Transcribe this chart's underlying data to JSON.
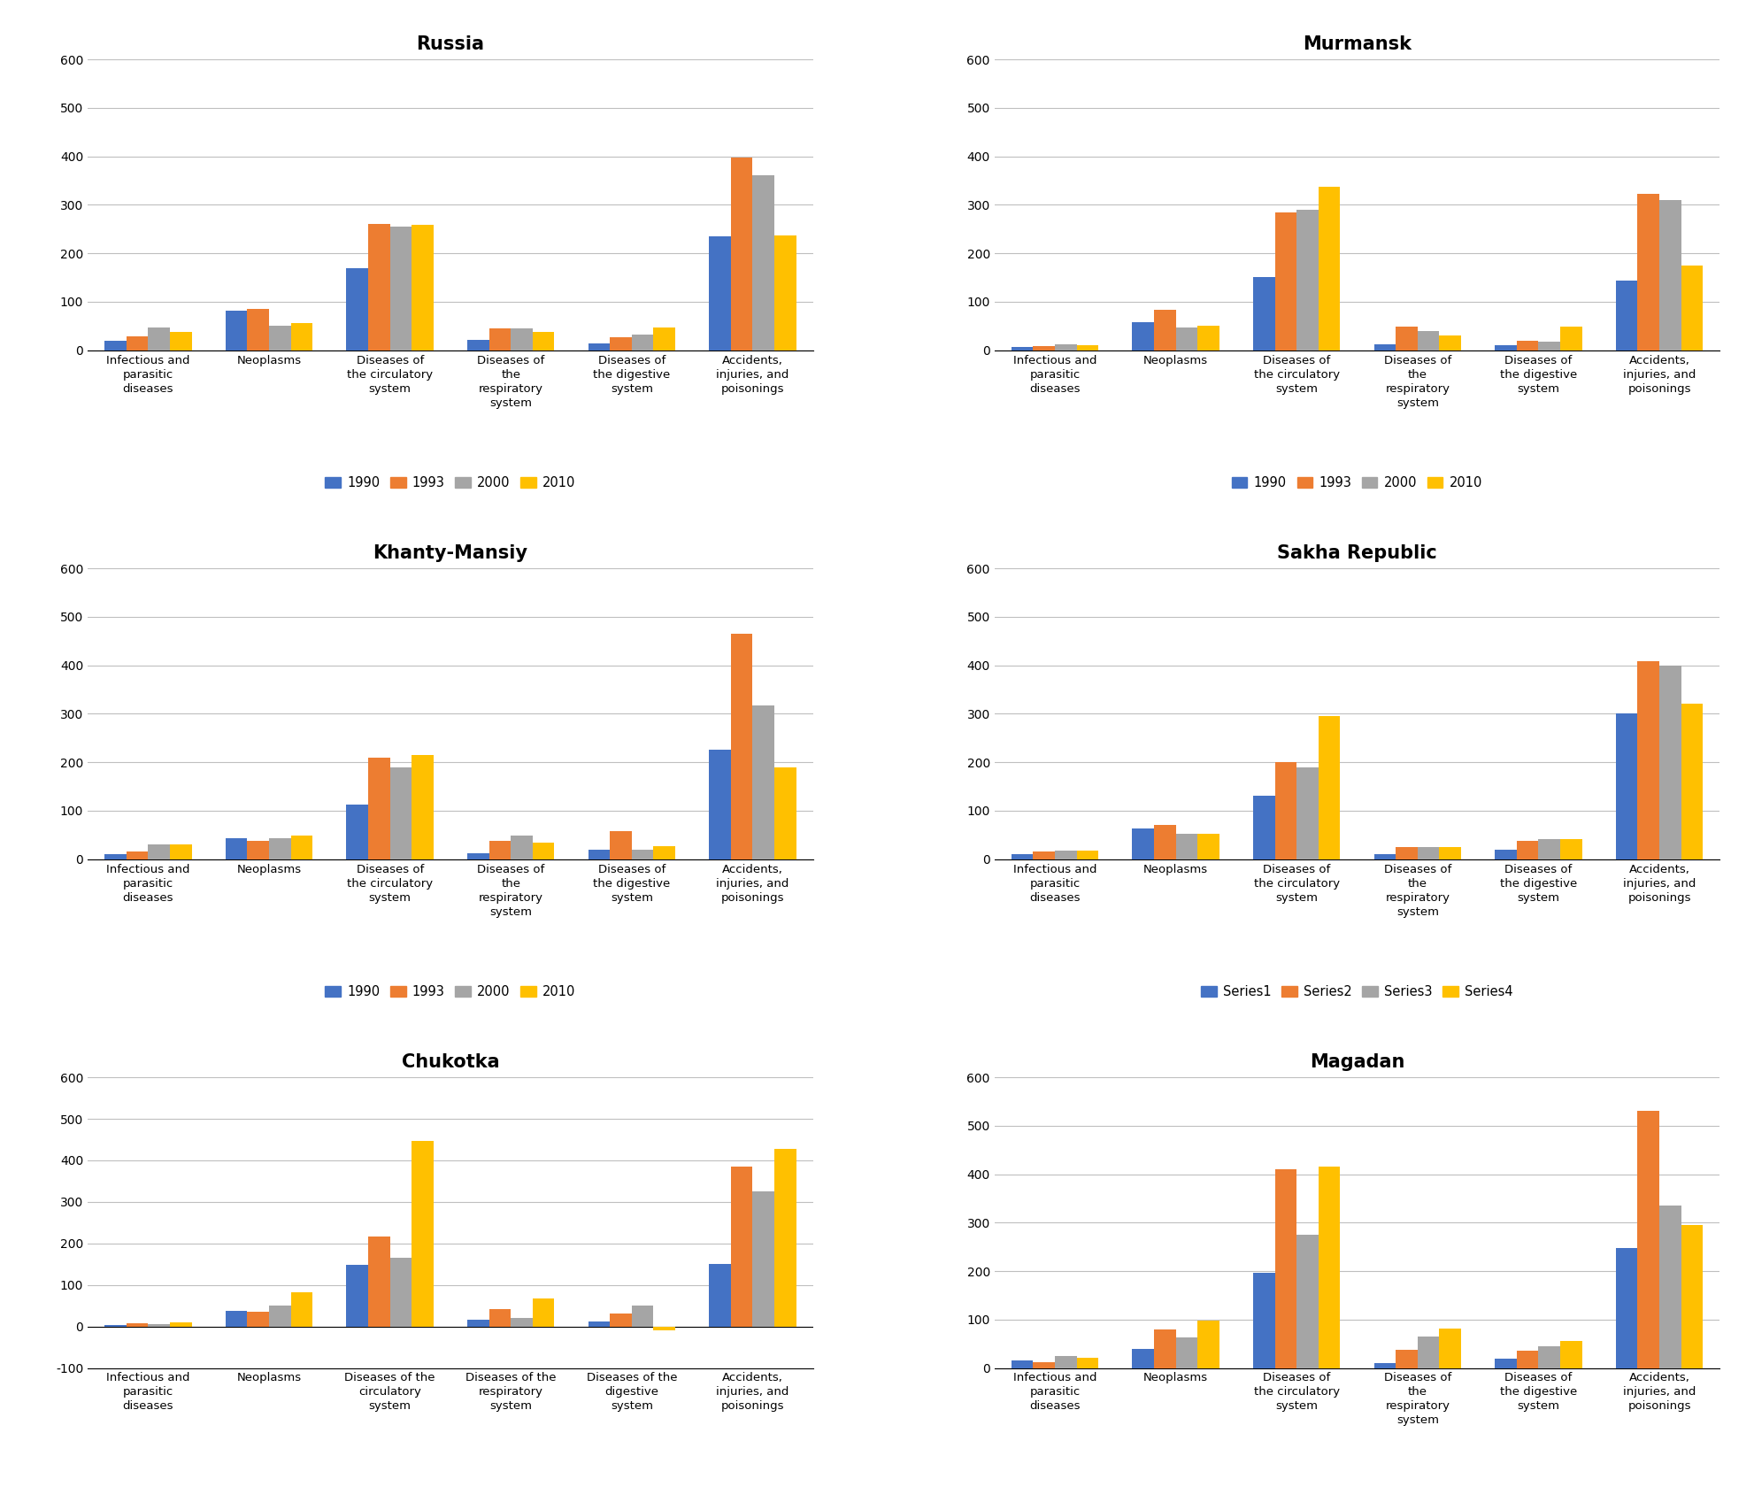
{
  "panels": [
    {
      "title": "Russia",
      "ylim": [
        0,
        600
      ],
      "yticks": [
        0,
        100,
        200,
        300,
        400,
        500,
        600
      ],
      "has_negative": false,
      "legend_labels": [
        "1990",
        "1993",
        "2000",
        "2010"
      ],
      "xlabels": [
        "Infectious and\nparasitic\ndiseases",
        "Neoplasms",
        "Diseases of\nthe circulatory\nsystem",
        "Diseases of\nthe\nrespiratory\nsystem",
        "Diseases of\nthe digestive\nsystem",
        "Accidents,\ninjuries, and\npoisonings"
      ],
      "data": [
        [
          20,
          28,
          47,
          38
        ],
        [
          82,
          85,
          50,
          57
        ],
        [
          170,
          260,
          255,
          258
        ],
        [
          22,
          46,
          46,
          37
        ],
        [
          15,
          27,
          32,
          47
        ],
        [
          235,
          398,
          362,
          237
        ]
      ]
    },
    {
      "title": "Murmansk",
      "ylim": [
        0,
        600
      ],
      "yticks": [
        0,
        100,
        200,
        300,
        400,
        500,
        600
      ],
      "has_negative": false,
      "legend_labels": [
        "1990",
        "1993",
        "2000",
        "2010"
      ],
      "xlabels": [
        "Infectious and\nparasitic\ndiseases",
        "Neoplasms",
        "Diseases of\nthe circulatory\nsystem",
        "Diseases of\nthe\nrespiratory\nsystem",
        "Diseases of\nthe digestive\nsystem",
        "Accidents,\ninjuries, and\npoisonings"
      ],
      "data": [
        [
          7,
          8,
          12,
          10
        ],
        [
          58,
          83,
          47,
          50
        ],
        [
          152,
          285,
          290,
          337
        ],
        [
          12,
          48,
          40,
          30
        ],
        [
          10,
          20,
          17,
          48
        ],
        [
          143,
          322,
          310,
          175
        ]
      ]
    },
    {
      "title": "Khanty-Mansiy",
      "ylim": [
        0,
        600
      ],
      "yticks": [
        0,
        100,
        200,
        300,
        400,
        500,
        600
      ],
      "has_negative": false,
      "legend_labels": [
        "1990",
        "1993",
        "2000",
        "2010"
      ],
      "xlabels": [
        "Infectious and\nparasitic\ndiseases",
        "Neoplasms",
        "Diseases of\nthe circulatory\nsystem",
        "Diseases of\nthe\nrespiratory\nsystem",
        "Diseases of\nthe digestive\nsystem",
        "Accidents,\ninjuries, and\npoisonings"
      ],
      "data": [
        [
          10,
          15,
          30,
          30
        ],
        [
          43,
          38,
          43,
          48
        ],
        [
          113,
          210,
          190,
          215
        ],
        [
          12,
          38,
          48,
          35
        ],
        [
          20,
          57,
          20,
          27
        ],
        [
          225,
          465,
          318,
          190
        ]
      ]
    },
    {
      "title": "Sakha Republic",
      "ylim": [
        0,
        600
      ],
      "yticks": [
        0,
        100,
        200,
        300,
        400,
        500,
        600
      ],
      "has_negative": false,
      "legend_labels": [
        "Series1",
        "Series2",
        "Series3",
        "Series4"
      ],
      "xlabels": [
        "Infectious and\nparasitic\ndiseases",
        "Neoplasms",
        "Diseases of\nthe circulatory\nsystem",
        "Diseases of\nthe\nrespiratory\nsystem",
        "Diseases of\nthe digestive\nsystem",
        "Accidents,\ninjuries, and\npoisonings"
      ],
      "data": [
        [
          10,
          15,
          18,
          18
        ],
        [
          63,
          70,
          52,
          52
        ],
        [
          130,
          200,
          190,
          295
        ],
        [
          10,
          25,
          25,
          25
        ],
        [
          20,
          38,
          42,
          42
        ],
        [
          300,
          408,
          400,
          320
        ]
      ]
    },
    {
      "title": "Chukotka",
      "ylim": [
        -100,
        600
      ],
      "yticks": [
        -100,
        0,
        100,
        200,
        300,
        400,
        500,
        600
      ],
      "has_negative": true,
      "legend_labels": [
        "1990",
        "1993",
        "2000",
        "2010"
      ],
      "xlabels": [
        "Infectious and\nparasitic\ndiseases",
        "Neoplasms",
        "Diseases of the\ncirculatory\nsystem",
        "Diseases of the\nrespiratory\nsystem",
        "Diseases of the\ndigestive\nsystem",
        "Accidents,\ninjuries, and\npoisonings"
      ],
      "data": [
        [
          3,
          7,
          5,
          10
        ],
        [
          37,
          35,
          50,
          82
        ],
        [
          148,
          217,
          165,
          447
        ],
        [
          17,
          42,
          20,
          68
        ],
        [
          13,
          32,
          50,
          -10
        ],
        [
          150,
          385,
          325,
          427
        ]
      ]
    },
    {
      "title": "Magadan",
      "ylim": [
        0,
        600
      ],
      "yticks": [
        0,
        100,
        200,
        300,
        400,
        500,
        600
      ],
      "has_negative": false,
      "legend_labels": [
        "1990",
        "1993",
        "2000",
        "2010"
      ],
      "xlabels": [
        "Infectious and\nparasitic\ndiseases",
        "Neoplasms",
        "Diseases of\nthe circulatory\nsystem",
        "Diseases of\nthe\nrespiratory\nsystem",
        "Diseases of\nthe digestive\nsystem",
        "Accidents,\ninjuries, and\npoisonings"
      ],
      "data": [
        [
          15,
          12,
          25,
          22
        ],
        [
          40,
          80,
          63,
          98
        ],
        [
          197,
          410,
          275,
          415
        ],
        [
          10,
          38,
          65,
          82
        ],
        [
          20,
          35,
          45,
          55
        ],
        [
          247,
          530,
          335,
          295
        ]
      ]
    }
  ],
  "colors": [
    "#4472C4",
    "#ED7D31",
    "#A5A5A5",
    "#FFC000"
  ],
  "bar_width": 0.18,
  "figsize": [
    19.83,
    16.8
  ],
  "dpi": 100,
  "background_color": "#FFFFFF",
  "grid_color": "#BFBFBF",
  "title_fontsize": 15,
  "label_fontsize": 9.5,
  "tick_fontsize": 10,
  "legend_fontsize": 10.5
}
